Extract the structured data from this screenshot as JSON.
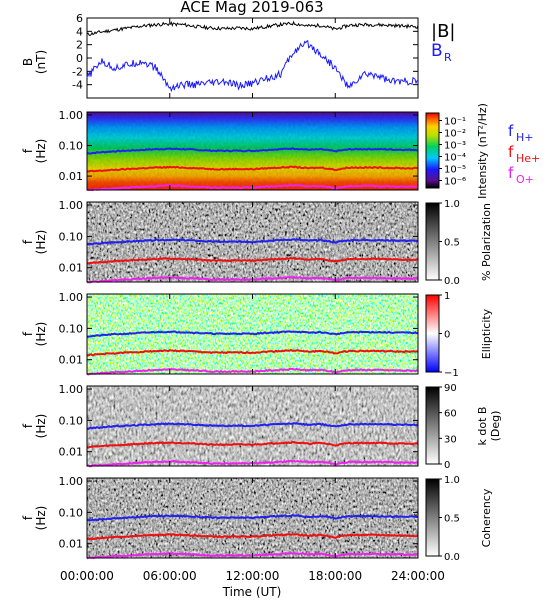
{
  "title": "ACE Mag 2019-063",
  "xlabel": "Time (UT)",
  "x_ticks": [
    "00:00:00",
    "06:00:00",
    "12:00:00",
    "18:00:00",
    "24:00:00"
  ],
  "colors": {
    "B_total": "#000000",
    "B_R": "#1a1aff",
    "f_H": "#2222ee",
    "f_He": "#ee1111",
    "f_O": "#ee22ee"
  },
  "chart_data": [
    {
      "type": "line",
      "panel": "field",
      "ylabel": "B (nT)",
      "ylabel_top": "B",
      "ylabel_bottom": "(nT)",
      "ylim": [
        -6,
        6
      ],
      "y_ticks": [
        "6",
        "4",
        "2",
        "0",
        "-2",
        "-4"
      ],
      "x_hours": [
        0,
        1,
        2,
        3,
        4,
        5,
        6,
        7,
        8,
        9,
        10,
        11,
        12,
        13,
        14,
        15,
        16,
        17,
        18,
        19,
        20,
        21,
        22,
        23,
        24
      ],
      "series": [
        {
          "name": "|B|",
          "values": [
            3.5,
            3.9,
            4.2,
            4.5,
            4.8,
            5.0,
            5.1,
            5.0,
            4.7,
            4.5,
            4.4,
            4.5,
            4.4,
            4.7,
            5.0,
            5.2,
            4.8,
            4.9,
            4.3,
            4.9,
            5.0,
            5.0,
            4.9,
            4.8,
            4.7
          ]
        },
        {
          "name": "B_R",
          "values": [
            -3.0,
            -0.5,
            -1.5,
            -1.0,
            -0.5,
            -1.5,
            -4.5,
            -4.0,
            -4.0,
            -3.8,
            -3.6,
            -4.2,
            -3.8,
            -3.0,
            -2.5,
            1.0,
            2.2,
            0.5,
            -1.5,
            -4.5,
            -2.5,
            -2.5,
            -3.5,
            -3.5,
            -3.5
          ]
        }
      ],
      "legend": [
        "|B|",
        "B",
        "R"
      ]
    },
    {
      "type": "heatmap",
      "panel": "intensity",
      "ylabel_top": "f",
      "ylabel_bottom": "(Hz)",
      "y_ticks": [
        "1.00",
        "0.10",
        "0.01"
      ],
      "colorbar_label": "Intensity (nT²/Hz)",
      "colorbar_ticks": [
        "10⁻¹",
        "10⁻²",
        "10⁻³",
        "10⁻⁴",
        "10⁻⁵",
        "10⁻⁶"
      ],
      "legend": [
        "f",
        "H+",
        "f",
        "He+",
        "f",
        "O+"
      ]
    },
    {
      "type": "heatmap",
      "panel": "polarization",
      "ylabel_top": "f",
      "ylabel_bottom": "(Hz)",
      "y_ticks": [
        "1.00",
        "0.10",
        "0.01"
      ],
      "colorbar_label": "% Polarization",
      "colorbar_ticks": [
        "1.0",
        "0.5",
        "0.0"
      ]
    },
    {
      "type": "heatmap",
      "panel": "ellipticity",
      "ylabel_top": "f",
      "ylabel_bottom": "(Hz)",
      "y_ticks": [
        "1.00",
        "0.10",
        "0.01"
      ],
      "colorbar_label": "Ellipticity",
      "colorbar_ticks": [
        "1",
        "0",
        "−1"
      ]
    },
    {
      "type": "heatmap",
      "panel": "kdotb",
      "ylabel_top": "f",
      "ylabel_bottom": "(Hz)",
      "y_ticks": [
        "1.00",
        "0.10",
        "0.01"
      ],
      "colorbar_label": "k dot B (Deg)",
      "colorbar_label_1": "k dot B",
      "colorbar_label_2": "(Deg)",
      "colorbar_ticks": [
        "90",
        "60",
        "30",
        "0"
      ]
    },
    {
      "type": "heatmap",
      "panel": "coherency",
      "ylabel_top": "f",
      "ylabel_bottom": "(Hz)",
      "y_ticks": [
        "1.00",
        "0.10",
        "0.01"
      ],
      "colorbar_label": "Coherency",
      "colorbar_ticks": [
        "1.0",
        "0.5",
        "0.0"
      ]
    }
  ],
  "cyclotron_freqs": {
    "x_hours": [
      0,
      1,
      2,
      3,
      4,
      5,
      6,
      7,
      8,
      9,
      10,
      11,
      12,
      13,
      14,
      15,
      16,
      17,
      18,
      19,
      20,
      21,
      22,
      23,
      24
    ],
    "f_H": [
      0.055,
      0.06,
      0.065,
      0.068,
      0.072,
      0.076,
      0.078,
      0.076,
      0.072,
      0.068,
      0.067,
      0.068,
      0.067,
      0.072,
      0.076,
      0.08,
      0.073,
      0.075,
      0.065,
      0.075,
      0.076,
      0.076,
      0.074,
      0.073,
      0.072
    ],
    "f_He": [
      0.014,
      0.015,
      0.016,
      0.017,
      0.018,
      0.019,
      0.0195,
      0.019,
      0.018,
      0.017,
      0.0168,
      0.017,
      0.0168,
      0.018,
      0.019,
      0.02,
      0.018,
      0.019,
      0.016,
      0.019,
      0.019,
      0.019,
      0.0185,
      0.018,
      0.018
    ],
    "f_O": [
      0.0035,
      0.0037,
      0.004,
      0.0042,
      0.0045,
      0.0047,
      0.0049,
      0.0047,
      0.0045,
      0.0042,
      0.0042,
      0.0042,
      0.0042,
      0.0045,
      0.0047,
      0.005,
      0.0046,
      0.0047,
      0.004,
      0.0047,
      0.0047,
      0.0047,
      0.0046,
      0.0045,
      0.0045
    ]
  }
}
